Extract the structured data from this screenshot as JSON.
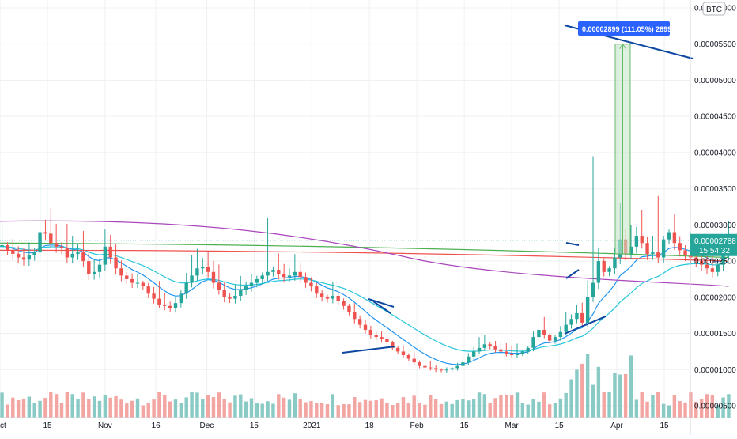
{
  "colors": {
    "up": "#26a69a",
    "down": "#ef5350",
    "vol_up": "#89cbc4",
    "vol_down": "#f3a5a2",
    "ema_fast": "#2196f3",
    "ema_slow": "#26c6da",
    "ma_purple": "#ab47bc",
    "ma_green": "#4caf50",
    "ma_red": "#ef5350",
    "trend_line": "#0d47a1",
    "measure_fill": "#c8e6c9",
    "price_tag": "#26a69a",
    "measure_label": "#2962ff"
  },
  "header": {
    "currency": "BTC"
  },
  "price_label": {
    "value": "0.00002788",
    "countdown": "15:54:32"
  },
  "measure_label": {
    "text": "0.00002899 (111.05%) 2899"
  },
  "chart_data": {
    "type": "candlestick",
    "title": "",
    "y_axis_ticks": [
      "0.00000500",
      "0.00001000",
      "0.00001500",
      "0.00002000",
      "0.00002500",
      "0.00003000",
      "0.00003500",
      "0.00004000",
      "0.00004500",
      "0.00005000",
      "0.00005500",
      "0.00006000"
    ],
    "y_axis_tick_values": [
      5e-06,
      1e-05,
      1.5e-05,
      2e-05,
      2.5e-05,
      3e-05,
      3.5e-05,
      4e-05,
      4.5e-05,
      5e-05,
      5.5e-05,
      6e-05
    ],
    "x_axis_ticks": [
      "ct",
      "15",
      "Nov",
      "16",
      "Dec",
      "15",
      "2021",
      "18",
      "Feb",
      "15",
      "Mar",
      "15",
      "Apr",
      "15"
    ],
    "x_axis_tick_dates": [
      "2020-10-01",
      "2020-10-15",
      "2020-11-01",
      "2020-11-16",
      "2020-12-01",
      "2020-12-15",
      "2021-01-01",
      "2021-01-18",
      "2021-02-01",
      "2021-02-15",
      "2021-03-01",
      "2021-03-15",
      "2021-04-01",
      "2021-04-15"
    ],
    "ylim": [
      4e-06,
      6e-05
    ],
    "date_range": [
      "2020-10-01",
      "2021-04-25"
    ],
    "last_price": 2.788e-05,
    "measure": {
      "from_date": "2021-04-05",
      "to_date": "2021-04-10",
      "from_price": 2.6e-05,
      "to_price": 5.5e-05,
      "change_percent": 111.05
    },
    "candles_close": [
      2.7e-05,
      2.72e-05,
      2.65e-05,
      2.6e-05,
      2.55e-05,
      2.52e-05,
      2.58e-05,
      2.62e-05,
      2.9e-05,
      2.88e-05,
      2.75e-05,
      2.7e-05,
      2.68e-05,
      2.55e-05,
      2.6e-05,
      2.62e-05,
      2.5e-05,
      2.32e-05,
      2.35e-05,
      2.45e-05,
      2.7e-05,
      2.55e-05,
      2.4e-05,
      2.3e-05,
      2.25e-05,
      2.2e-05,
      2.2e-05,
      2.15e-05,
      2.05e-05,
      1.98e-05,
      1.9e-05,
      1.88e-05,
      1.85e-05,
      1.92e-05,
      2.05e-05,
      2.2e-05,
      2.3e-05,
      2.4e-05,
      2.42e-05,
      2.35e-05,
      2.2e-05,
      2.1e-05,
      2e-05,
      1.98e-05,
      2.02e-05,
      2.1e-05,
      2.15e-05,
      2.2e-05,
      2.25e-05,
      2.3e-05,
      2.35e-05,
      2.38e-05,
      2.32e-05,
      2.28e-05,
      2.3e-05,
      2.35e-05,
      2.28e-05,
      2.2e-05,
      2.15e-05,
      2.05e-05,
      2e-05,
      1.98e-05,
      2.02e-05,
      1.95e-05,
      1.88e-05,
      1.8e-05,
      1.7e-05,
      1.62e-05,
      1.55e-05,
      1.48e-05,
      1.45e-05,
      1.42e-05,
      1.38e-05,
      1.3e-05,
      1.25e-05,
      1.2e-05,
      1.15e-05,
      1.1e-05,
      1.05e-05,
      1.03e-05,
      1.02e-05,
      1e-05,
      9.9e-06,
      1e-05,
      1.02e-05,
      1.05e-05,
      1.1e-05,
      1.18e-05,
      1.25e-05,
      1.3e-05,
      1.35e-05,
      1.32e-05,
      1.28e-05,
      1.25e-05,
      1.22e-05,
      1.2e-05,
      1.22e-05,
      1.25e-05,
      1.3e-05,
      1.45e-05,
      1.55e-05,
      1.48e-05,
      1.4e-05,
      1.45e-05,
      1.52e-05,
      1.62e-05,
      1.7e-05,
      1.78e-05,
      1.65e-05,
      2e-05,
      2.2e-05,
      2.5e-05,
      2.35e-05,
      2.4e-05,
      2.55e-05,
      2.8e-05,
      2.6e-05,
      2.7e-05,
      2.85e-05,
      2.75e-05,
      2.6e-05,
      2.62e-05,
      2.55e-05,
      2.8e-05,
      2.9e-05,
      2.75e-05,
      2.65e-05,
      2.58e-05,
      2.55e-05,
      2.5e-05,
      2.45e-05,
      2.4e-05,
      2.35e-05,
      2.45e-05,
      2.6e-05,
      2.788e-05
    ]
  }
}
